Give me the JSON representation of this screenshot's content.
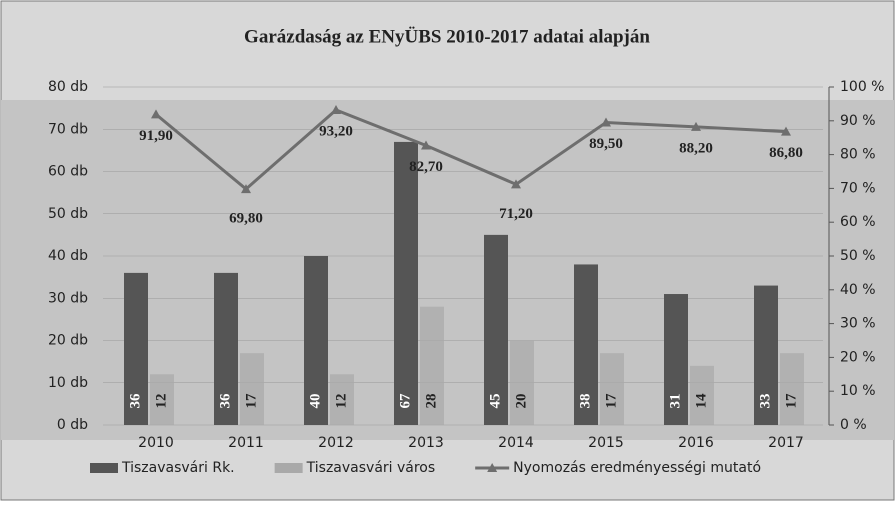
{
  "chart_data": {
    "type": "bar-line",
    "title": "Garázdaság az ENyÜBS 2010-2017 adatai alapján",
    "categories": [
      "2010",
      "2011",
      "2012",
      "2013",
      "2014",
      "2015",
      "2016",
      "2017"
    ],
    "series": [
      {
        "name": "Tiszavasvári Rk.",
        "color": "#555555",
        "type": "bar",
        "values": [
          36,
          36,
          40,
          67,
          45,
          38,
          31,
          33
        ]
      },
      {
        "name": "Tiszavasvári város",
        "color": "#a9a9a9",
        "type": "bar",
        "values": [
          12,
          17,
          12,
          28,
          20,
          17,
          14,
          17
        ]
      },
      {
        "name": "Nyomozás eredményességi mutató",
        "color": "#6e6e6e",
        "type": "line",
        "axis": "y2",
        "values": [
          91.9,
          69.8,
          93.2,
          82.7,
          71.2,
          89.5,
          88.2,
          86.8
        ],
        "value_labels": [
          "91,90",
          "69,80",
          "93,20",
          "82,70",
          "71,20",
          "89,50",
          "88,20",
          "86,80"
        ]
      }
    ],
    "ylim": [
      0,
      80
    ],
    "yticks": [
      {
        "value": 0,
        "label": "0 db"
      },
      {
        "value": 10,
        "label": "10 db"
      },
      {
        "value": 20,
        "label": "20 db"
      },
      {
        "value": 30,
        "label": "30 db"
      },
      {
        "value": 40,
        "label": "40 db"
      },
      {
        "value": 50,
        "label": "50 db"
      },
      {
        "value": 60,
        "label": "60 db"
      },
      {
        "value": 70,
        "label": "70 db"
      },
      {
        "value": 80,
        "label": "80 db"
      }
    ],
    "y2lim": [
      0,
      100
    ],
    "y2ticks": [
      {
        "value": 0,
        "label": "0 %"
      },
      {
        "value": 10,
        "label": "10 %"
      },
      {
        "value": 20,
        "label": "20 %"
      },
      {
        "value": 30,
        "label": "30 %"
      },
      {
        "value": 40,
        "label": "40 %"
      },
      {
        "value": 50,
        "label": "50 %"
      },
      {
        "value": 60,
        "label": "60 %"
      },
      {
        "value": 70,
        "label": "70 %"
      },
      {
        "value": 80,
        "label": "80 %"
      },
      {
        "value": 90,
        "label": "90 %"
      },
      {
        "value": 100,
        "label": "100 %"
      }
    ],
    "legend": "bottom"
  }
}
